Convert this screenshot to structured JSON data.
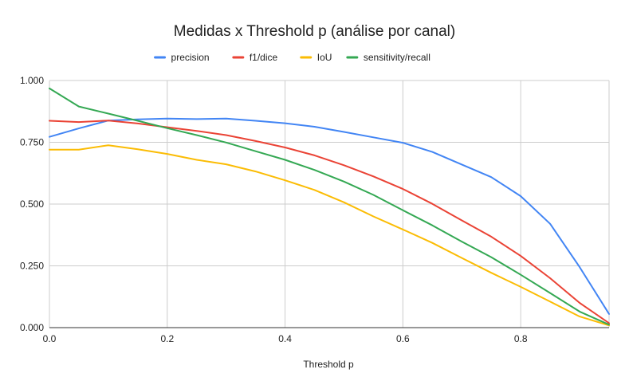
{
  "chart_data": {
    "type": "line",
    "title": "Medidas x Threshold p (análise por canal)",
    "xlabel": "Threshold p",
    "ylabel": "",
    "xlim": [
      0,
      0.95
    ],
    "ylim": [
      0,
      1
    ],
    "x_ticks": [
      "0.0",
      "0.2",
      "0.4",
      "0.6",
      "0.8"
    ],
    "x_tick_values": [
      0,
      0.2,
      0.4,
      0.6,
      0.8
    ],
    "y_ticks": [
      "0.000",
      "0.250",
      "0.500",
      "0.750",
      "1.000"
    ],
    "y_tick_values": [
      0,
      0.25,
      0.5,
      0.75,
      1.0
    ],
    "grid": true,
    "legend_position": "top",
    "x": [
      0,
      0.05,
      0.1,
      0.15,
      0.2,
      0.25,
      0.3,
      0.35,
      0.4,
      0.45,
      0.5,
      0.55,
      0.6,
      0.65,
      0.7,
      0.75,
      0.8,
      0.85,
      0.9,
      0.95
    ],
    "series": [
      {
        "name": "precision",
        "color": "#4285f4",
        "values": [
          0.772,
          0.806,
          0.838,
          0.843,
          0.846,
          0.844,
          0.846,
          0.837,
          0.827,
          0.813,
          0.792,
          0.77,
          0.748,
          0.711,
          0.66,
          0.609,
          0.532,
          0.42,
          0.245,
          0.055
        ]
      },
      {
        "name": "f1/dice",
        "color": "#ea4335",
        "values": [
          0.837,
          0.832,
          0.838,
          0.826,
          0.811,
          0.796,
          0.779,
          0.755,
          0.729,
          0.697,
          0.657,
          0.612,
          0.561,
          0.501,
          0.434,
          0.368,
          0.29,
          0.2,
          0.1,
          0.018
        ]
      },
      {
        "name": "IoU",
        "color": "#fbbc04",
        "values": [
          0.72,
          0.72,
          0.738,
          0.722,
          0.703,
          0.679,
          0.661,
          0.632,
          0.596,
          0.557,
          0.507,
          0.45,
          0.397,
          0.343,
          0.282,
          0.222,
          0.165,
          0.105,
          0.045,
          0.009
        ]
      },
      {
        "name": "sensitivity/recall",
        "color": "#34a853",
        "values": [
          0.968,
          0.895,
          0.866,
          0.837,
          0.807,
          0.779,
          0.749,
          0.714,
          0.679,
          0.638,
          0.591,
          0.537,
          0.475,
          0.414,
          0.348,
          0.285,
          0.214,
          0.14,
          0.065,
          0.012
        ]
      }
    ]
  }
}
